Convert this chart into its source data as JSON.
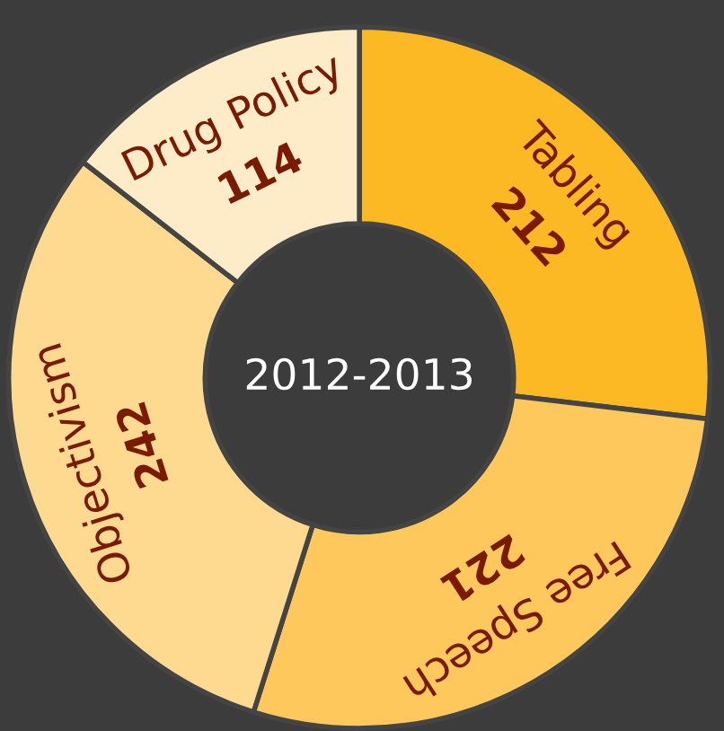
{
  "chart_data": {
    "type": "donut",
    "title": "2012-2013",
    "categories": [
      "Tabling",
      "Free Speech",
      "Objectivism",
      "Drug Policy"
    ],
    "values": [
      212,
      221,
      242,
      114
    ],
    "colors": [
      "#fdb924",
      "#fec85c",
      "#fed990",
      "#feebc7"
    ],
    "data_labels": true
  }
}
